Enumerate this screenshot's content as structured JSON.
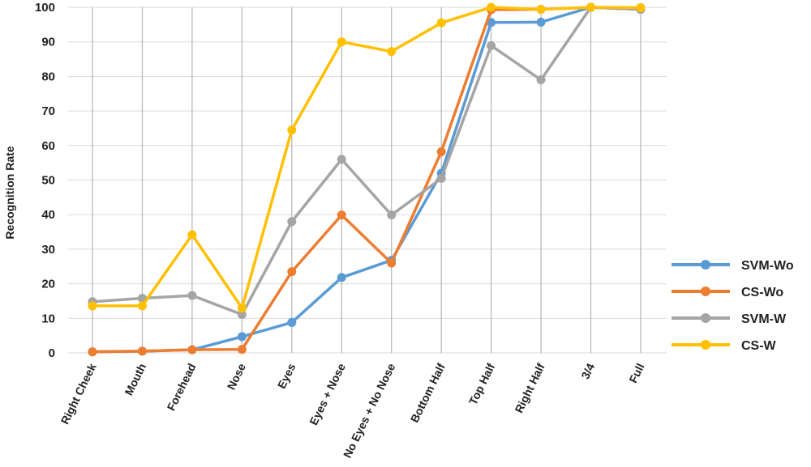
{
  "chart_data": {
    "type": "line",
    "ylabel": "Recognition Rate",
    "ylim": [
      0,
      100
    ],
    "yticks": [
      0,
      10,
      20,
      30,
      40,
      50,
      60,
      70,
      80,
      90,
      100
    ],
    "grid": "horizontal and vertical gridlines",
    "legend_position": "right",
    "categories": [
      "Right Cheek",
      "Mouth",
      "Forehead",
      "Nose",
      "Eyes",
      "Eyes + Nose",
      "No Eyes + No Nose",
      "Bottom Half",
      "Top Half",
      "Right Half",
      "3/4",
      "Full"
    ],
    "series": [
      {
        "name": "SVM-Wo",
        "color": "#5B9BD5",
        "values": [
          0.3,
          0.5,
          0.9,
          4.7,
          8.8,
          21.8,
          26.8,
          52,
          95.6,
          95.7,
          100,
          99.4
        ]
      },
      {
        "name": "CS-Wo",
        "color": "#ED7D31",
        "values": [
          0.3,
          0.5,
          0.9,
          1.0,
          23.5,
          39.9,
          26.0,
          58.2,
          99.3,
          99.4,
          100,
          99.4
        ]
      },
      {
        "name": "SVM-W",
        "color": "#A5A5A5",
        "values": [
          14.8,
          15.8,
          16.6,
          11.1,
          38.0,
          56.0,
          39.9,
          50.5,
          88.9,
          79.0,
          100,
          99.4
        ]
      },
      {
        "name": "CS-W",
        "color": "#FFC000",
        "values": [
          13.6,
          13.6,
          34.2,
          13.0,
          64.5,
          90.0,
          87.2,
          95.5,
          100,
          99.4,
          100,
          99.9
        ]
      }
    ]
  }
}
